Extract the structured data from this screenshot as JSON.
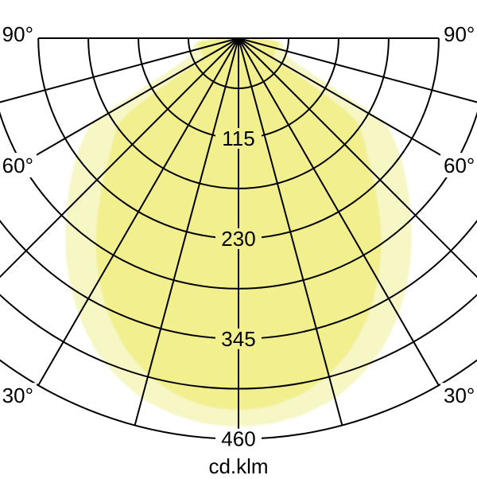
{
  "page": {
    "background": "#ffffff"
  },
  "chart_data": {
    "type": "polar",
    "subtype": "photometric-light-distribution",
    "unit_label": "cd.klm",
    "grid_color": "#000000",
    "spoke_step_deg": 15,
    "radial_max": 460,
    "radial_grid_values": [
      57.5,
      115,
      172.5,
      230,
      287.5,
      345,
      402.5,
      460
    ],
    "radial_tick_labels": [
      "115",
      "230",
      "345",
      "460"
    ],
    "angle_ticks": [
      {
        "deg": 90,
        "label": "90°"
      },
      {
        "deg": 60,
        "label": "60°"
      },
      {
        "deg": 30,
        "label": "30°"
      }
    ],
    "angle_tick_sides": [
      "left",
      "right"
    ],
    "series": [
      {
        "name": "wide-plane-light",
        "fill": "#f7f6c5",
        "points_deg_value": [
          [
            0,
            446
          ],
          [
            5,
            444
          ],
          [
            10,
            438
          ],
          [
            15,
            428
          ],
          [
            20,
            412
          ],
          [
            25,
            392
          ],
          [
            30,
            367
          ],
          [
            35,
            339
          ],
          [
            40,
            309
          ],
          [
            45,
            279
          ],
          [
            50,
            251
          ],
          [
            54,
            230
          ],
          [
            57,
            213
          ],
          [
            59,
            201
          ],
          [
            60,
            193
          ],
          [
            61,
            170
          ],
          [
            62,
            132
          ],
          [
            64,
            96
          ],
          [
            66,
            78
          ],
          [
            69,
            62
          ],
          [
            73,
            56
          ],
          [
            78,
            53
          ],
          [
            83,
            51
          ],
          [
            86,
            44
          ],
          [
            88,
            26
          ],
          [
            90,
            9
          ]
        ]
      },
      {
        "name": "narrow-plane-dark",
        "fill": "#f1ef8e",
        "points_deg_value": [
          [
            0,
            427
          ],
          [
            5,
            424
          ],
          [
            10,
            415
          ],
          [
            15,
            400
          ],
          [
            20,
            379
          ],
          [
            25,
            352
          ],
          [
            30,
            320
          ],
          [
            35,
            286
          ],
          [
            40,
            249
          ],
          [
            45,
            216
          ],
          [
            48,
            199
          ],
          [
            51,
            185
          ],
          [
            54,
            172
          ],
          [
            55,
            165
          ],
          [
            56,
            149
          ],
          [
            57,
            116
          ],
          [
            58,
            86
          ],
          [
            59,
            66
          ],
          [
            60,
            53
          ],
          [
            62,
            46
          ],
          [
            66,
            45
          ],
          [
            70,
            45
          ],
          [
            75,
            46
          ],
          [
            80,
            47
          ],
          [
            84,
            48
          ],
          [
            86,
            41
          ],
          [
            88,
            23
          ],
          [
            90,
            7
          ]
        ]
      }
    ]
  }
}
